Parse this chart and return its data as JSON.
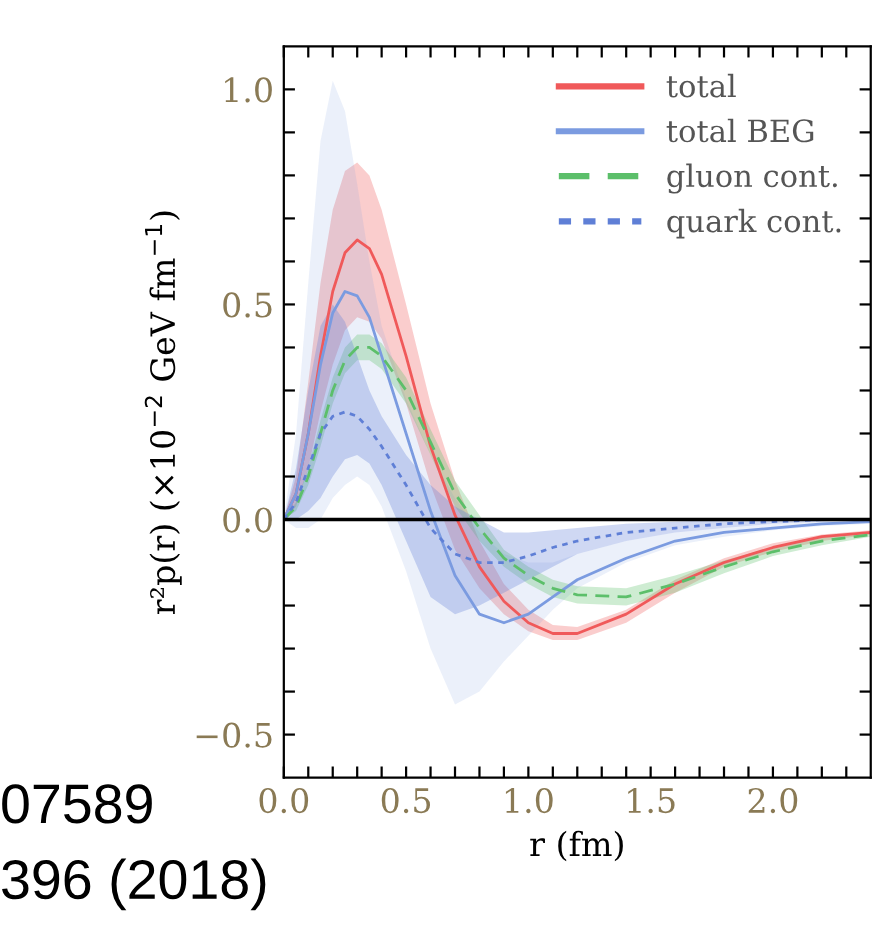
{
  "chart_data": {
    "type": "line",
    "xlabel": "r (fm)",
    "ylabel": "r²p(r) (×10$^{−2}$ GeV fm$^{−1}$)",
    "x": [
      0,
      0.05,
      0.1,
      0.15,
      0.2,
      0.25,
      0.3,
      0.35,
      0.4,
      0.5,
      0.6,
      0.7,
      0.8,
      0.9,
      1.0,
      1.1,
      1.2,
      1.4,
      1.6,
      1.8,
      2.0,
      2.2,
      2.4
    ],
    "series": [
      {
        "name": "total",
        "color": "#f0595a",
        "line_style": "solid",
        "values": [
          0,
          0.06,
          0.2,
          0.38,
          0.53,
          0.62,
          0.65,
          0.63,
          0.57,
          0.38,
          0.17,
          0.01,
          -0.11,
          -0.19,
          -0.24,
          -0.265,
          -0.265,
          -0.22,
          -0.15,
          -0.1,
          -0.065,
          -0.04,
          -0.03
        ],
        "lower": [
          0,
          0.03,
          0.12,
          0.25,
          0.36,
          0.44,
          0.47,
          0.46,
          0.42,
          0.27,
          0.08,
          -0.07,
          -0.16,
          -0.22,
          -0.26,
          -0.28,
          -0.28,
          -0.24,
          -0.17,
          -0.11,
          -0.075,
          -0.05,
          -0.035
        ],
        "upper": [
          0,
          0.1,
          0.32,
          0.55,
          0.72,
          0.81,
          0.83,
          0.8,
          0.72,
          0.5,
          0.27,
          0.09,
          -0.05,
          -0.15,
          -0.21,
          -0.245,
          -0.25,
          -0.21,
          -0.14,
          -0.09,
          -0.055,
          -0.035,
          -0.025
        ]
      },
      {
        "name": "total BEG",
        "color": "#7b9be0",
        "line_style": "solid",
        "values": [
          0,
          0.06,
          0.2,
          0.36,
          0.48,
          0.53,
          0.52,
          0.47,
          0.38,
          0.2,
          0.02,
          -0.13,
          -0.22,
          -0.24,
          -0.22,
          -0.18,
          -0.14,
          -0.09,
          -0.05,
          -0.03,
          -0.02,
          -0.01,
          -0.005
        ],
        "lower": [
          0,
          -0.02,
          -0.02,
          0,
          0.05,
          0.08,
          0.1,
          0.08,
          0.03,
          -0.12,
          -0.3,
          -0.43,
          -0.4,
          -0.33,
          -0.27,
          -0.21,
          -0.16,
          -0.1,
          -0.06,
          -0.04,
          -0.025,
          -0.015,
          -0.01
        ],
        "upper": [
          0,
          0.2,
          0.55,
          0.88,
          1.02,
          0.95,
          0.78,
          0.6,
          0.45,
          0.28,
          0.15,
          0.05,
          -0.03,
          -0.08,
          -0.1,
          -0.1,
          -0.08,
          -0.05,
          -0.03,
          -0.02,
          -0.01,
          -0.005,
          0
        ]
      },
      {
        "name": "gluon cont.",
        "color": "#5cbf6a",
        "line_style": "dashed",
        "values": [
          0,
          0.03,
          0.1,
          0.2,
          0.3,
          0.37,
          0.4,
          0.4,
          0.38,
          0.3,
          0.18,
          0.06,
          -0.02,
          -0.09,
          -0.13,
          -0.16,
          -0.175,
          -0.18,
          -0.15,
          -0.11,
          -0.075,
          -0.05,
          -0.035
        ],
        "lower": [
          0,
          0.02,
          0.08,
          0.17,
          0.27,
          0.34,
          0.37,
          0.37,
          0.35,
          0.27,
          0.15,
          0.03,
          -0.05,
          -0.11,
          -0.15,
          -0.18,
          -0.195,
          -0.2,
          -0.17,
          -0.125,
          -0.085,
          -0.06,
          -0.04
        ],
        "upper": [
          0,
          0.04,
          0.12,
          0.23,
          0.33,
          0.4,
          0.43,
          0.43,
          0.41,
          0.33,
          0.21,
          0.09,
          0.01,
          -0.07,
          -0.11,
          -0.14,
          -0.155,
          -0.16,
          -0.13,
          -0.095,
          -0.065,
          -0.04,
          -0.03
        ]
      },
      {
        "name": "quark cont.",
        "color": "#5f7fd6",
        "line_style": "dotted",
        "values": [
          0,
          0.04,
          0.12,
          0.2,
          0.24,
          0.25,
          0.24,
          0.21,
          0.17,
          0.08,
          -0.02,
          -0.08,
          -0.1,
          -0.1,
          -0.085,
          -0.065,
          -0.05,
          -0.03,
          -0.02,
          -0.01,
          -0.005,
          0,
          0
        ],
        "lower": [
          0,
          0,
          0.02,
          0.05,
          0.1,
          0.14,
          0.15,
          0.13,
          0.08,
          -0.05,
          -0.18,
          -0.22,
          -0.2,
          -0.17,
          -0.14,
          -0.11,
          -0.08,
          -0.05,
          -0.03,
          -0.02,
          -0.01,
          -0.005,
          0
        ],
        "upper": [
          0,
          0.12,
          0.3,
          0.45,
          0.5,
          0.46,
          0.38,
          0.3,
          0.24,
          0.15,
          0.08,
          0.03,
          0,
          -0.03,
          -0.03,
          -0.025,
          -0.02,
          -0.01,
          -0.005,
          0,
          0,
          0,
          0
        ]
      }
    ],
    "ref_lines": [
      {
        "axis": "y",
        "value": 0,
        "color": "#000000"
      }
    ],
    "xlim": [
      0,
      2.4
    ],
    "ylim": [
      -0.6,
      1.1
    ],
    "xticks": [
      {
        "value": 0,
        "label": "0.0"
      },
      {
        "value": 0.1,
        "label": null
      },
      {
        "value": 0.2,
        "label": null
      },
      {
        "value": 0.3,
        "label": null
      },
      {
        "value": 0.4,
        "label": null
      },
      0.5,
      {
        "value": 0.6,
        "label": null
      },
      {
        "value": 0.7,
        "label": null
      },
      {
        "value": 0.8,
        "label": null
      },
      {
        "value": 0.9,
        "label": null
      },
      {
        "value": 1,
        "label": "1.0"
      },
      {
        "value": 1.1,
        "label": null
      },
      {
        "value": 1.2,
        "label": null
      },
      {
        "value": 1.3,
        "label": null
      },
      {
        "value": 1.4,
        "label": null
      },
      1.5,
      {
        "value": 1.6,
        "label": null
      },
      {
        "value": 1.7,
        "label": null
      },
      {
        "value": 1.8,
        "label": null
      },
      {
        "value": 1.9,
        "label": null
      },
      {
        "value": 2,
        "label": "2.0"
      },
      {
        "value": 2.1,
        "label": null
      },
      {
        "value": 2.2,
        "label": null
      },
      {
        "value": 2.3,
        "label": null
      }
    ],
    "yticks": [
      {
        "value": -0.5,
        "label": "−0.5"
      },
      {
        "value": -0.4,
        "label": null
      },
      {
        "value": -0.3,
        "label": null
      },
      {
        "value": -0.2,
        "label": null
      },
      {
        "value": -0.1,
        "label": null
      },
      {
        "value": 0,
        "label": "0.0"
      },
      {
        "value": 0.1,
        "label": null
      },
      {
        "value": 0.2,
        "label": null
      },
      {
        "value": 0.3,
        "label": null
      },
      {
        "value": 0.4,
        "label": null
      },
      0.5,
      {
        "value": 0.6,
        "label": null
      },
      {
        "value": 0.7,
        "label": null
      },
      {
        "value": 0.8,
        "label": null
      },
      {
        "value": 0.9,
        "label": null
      },
      {
        "value": 1,
        "label": "1.0"
      }
    ],
    "grid": false,
    "legend": "top right",
    "annotations": [
      "07589",
      "396 (2018)"
    ]
  }
}
